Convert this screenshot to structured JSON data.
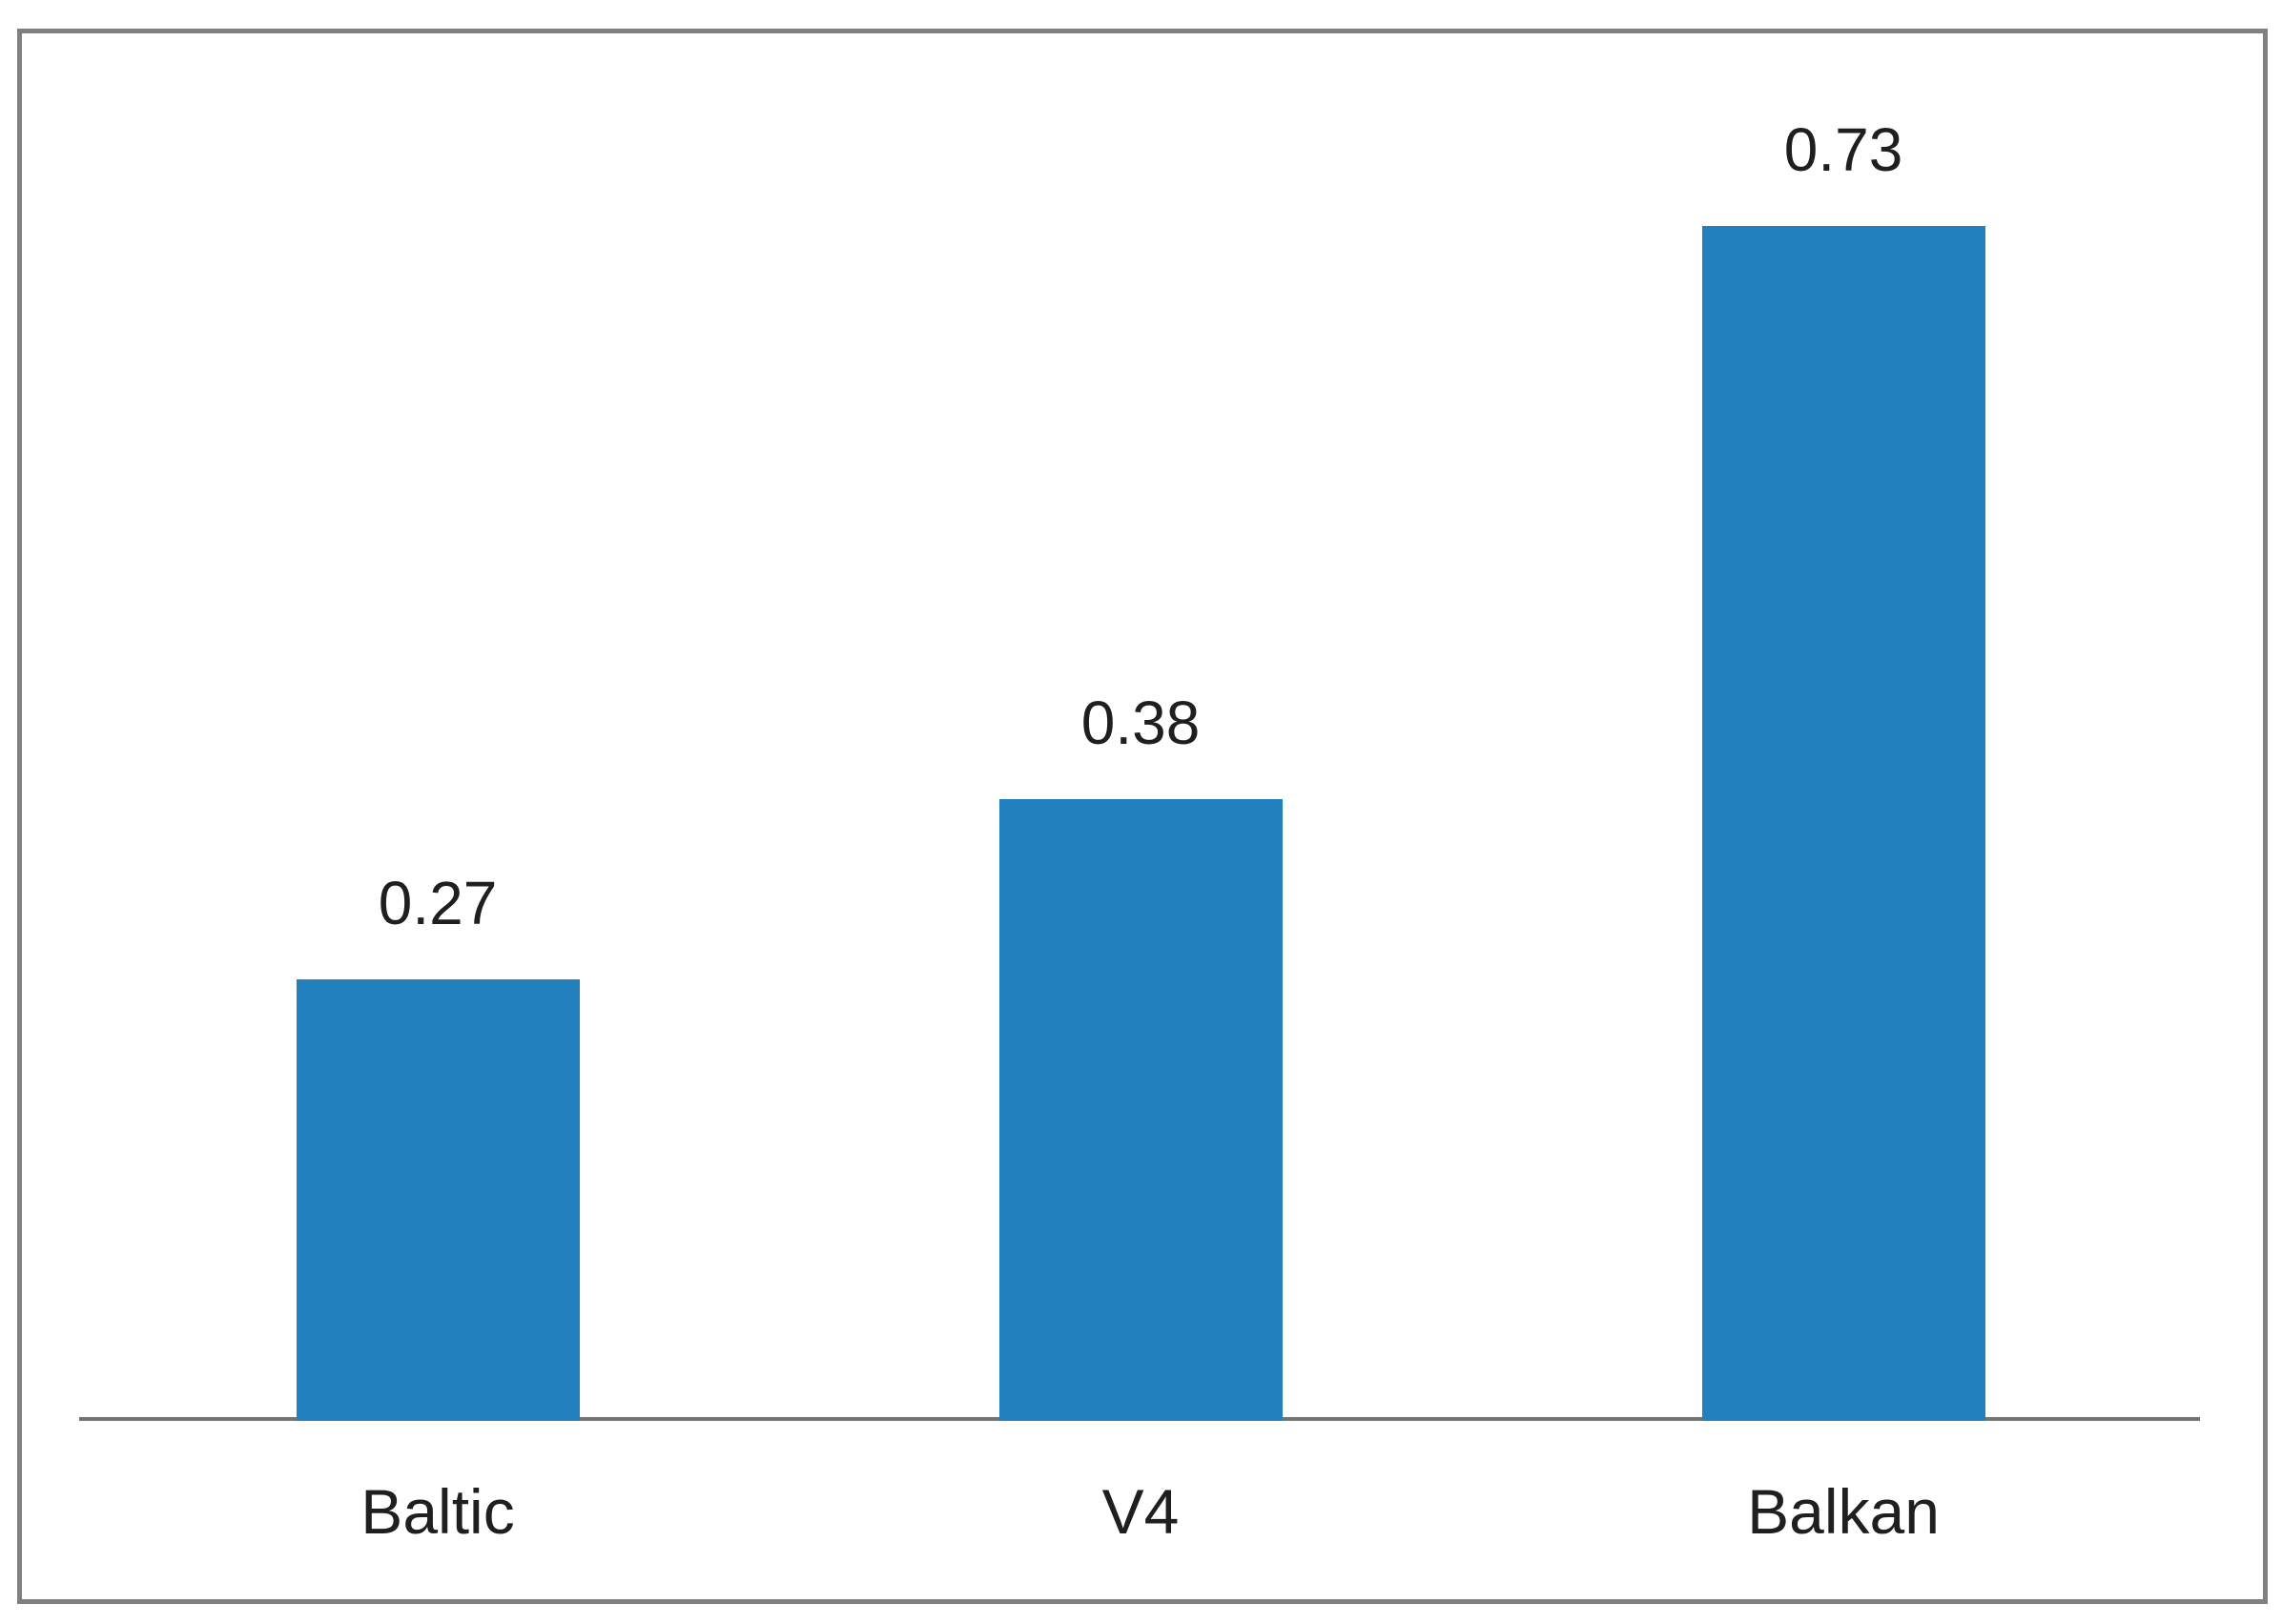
{
  "chart_data": {
    "type": "bar",
    "categories": [
      "Baltic",
      "V4",
      "Balkan"
    ],
    "values": [
      0.27,
      0.38,
      0.73
    ],
    "data_labels": [
      "0.27",
      "0.38",
      "0.73"
    ],
    "title": "",
    "xlabel": "",
    "ylabel": "",
    "ylim": [
      0,
      0.85
    ],
    "grid": false,
    "legend": false,
    "colors": {
      "bar_fill": "#2181BE",
      "axis_line": "#757575",
      "frame_border": "#808080",
      "label_text": "#1f1f1f",
      "background": "#ffffff"
    }
  }
}
